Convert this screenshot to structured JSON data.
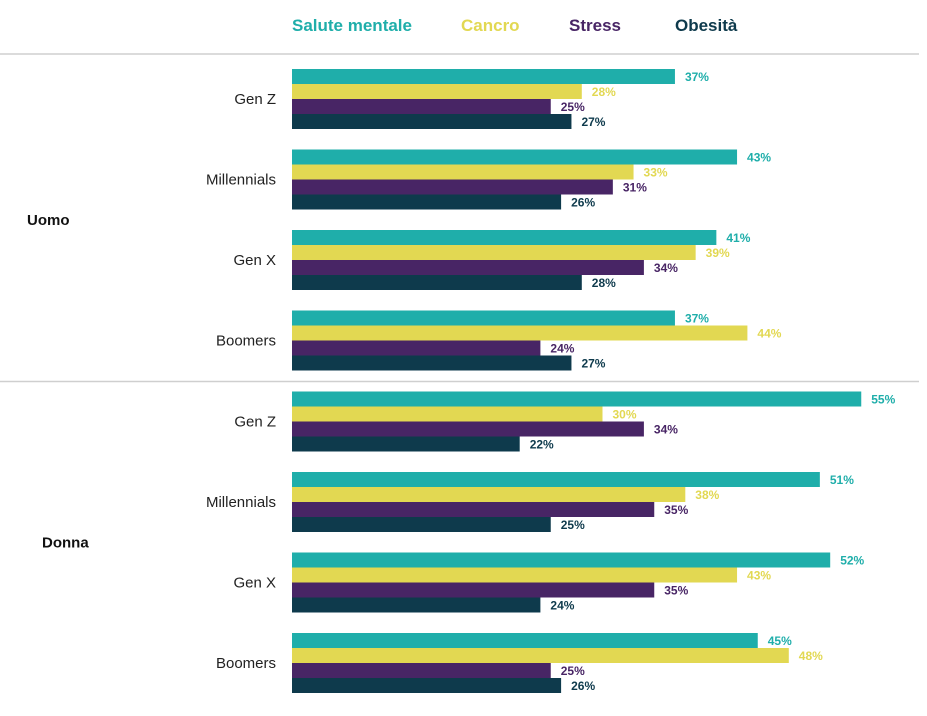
{
  "chart_data": {
    "type": "bar",
    "orientation": "horizontal",
    "series": [
      {
        "name": "Salute mentale",
        "color": "#1FAEAA"
      },
      {
        "name": "Cancro",
        "color": "#E2D852"
      },
      {
        "name": "Stress",
        "color": "#482565"
      },
      {
        "name": "Obesità",
        "color": "#0E3A4C"
      }
    ],
    "groups": [
      {
        "label": "Uomo",
        "categories": [
          {
            "label": "Gen Z",
            "values": [
              37,
              28,
              25,
              27
            ]
          },
          {
            "label": "Millennials",
            "values": [
              43,
              33,
              31,
              26
            ]
          },
          {
            "label": "Gen X",
            "values": [
              41,
              39,
              34,
              28
            ]
          },
          {
            "label": "Boomers",
            "values": [
              37,
              44,
              24,
              27
            ]
          }
        ]
      },
      {
        "label": "Donna",
        "categories": [
          {
            "label": "Gen Z",
            "values": [
              55,
              30,
              34,
              22
            ]
          },
          {
            "label": "Millennials",
            "values": [
              51,
              38,
              35,
              25
            ]
          },
          {
            "label": "Gen X",
            "values": [
              52,
              43,
              35,
              24
            ]
          },
          {
            "label": "Boomers",
            "values": [
              45,
              48,
              25,
              26
            ]
          }
        ]
      }
    ],
    "value_suffix": "%",
    "xlim": [
      0,
      55
    ],
    "grid": false,
    "legend_position": "top"
  }
}
